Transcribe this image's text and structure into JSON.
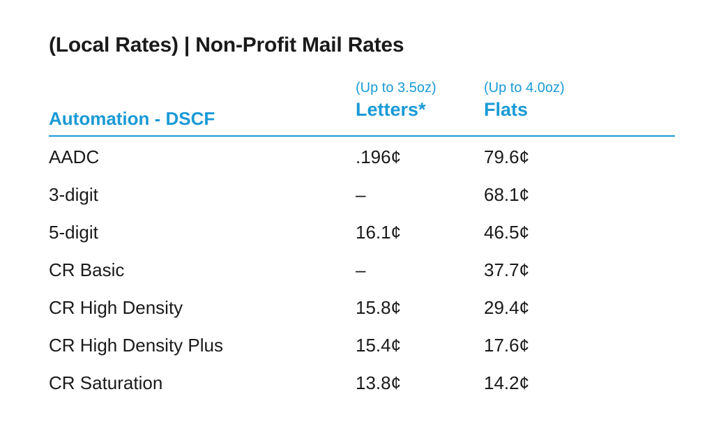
{
  "title": "(Local Rates) | Non-Profit Mail Rates",
  "table": {
    "section_label": "Automation - DSCF",
    "columns": [
      {
        "note": "(Up to 3.5oz)",
        "name": "Letters*"
      },
      {
        "note": "(Up to 4.0oz)",
        "name": "Flats"
      }
    ],
    "rows": [
      {
        "name": "AADC",
        "letters": ".196¢",
        "flats": "79.6¢"
      },
      {
        "name": "3-digit",
        "letters": "–",
        "flats": "68.1¢"
      },
      {
        "name": "5-digit",
        "letters": "16.1¢",
        "flats": "46.5¢"
      },
      {
        "name": "CR Basic",
        "letters": "–",
        "flats": "37.7¢"
      },
      {
        "name": "CR High Density",
        "letters": "15.8¢",
        "flats": "29.4¢"
      },
      {
        "name": "CR High Density Plus",
        "letters": "15.4¢",
        "flats": "17.6¢"
      },
      {
        "name": "CR Saturation",
        "letters": "13.8¢",
        "flats": "14.2¢"
      }
    ]
  },
  "colors": {
    "accent": "#1a9ad6",
    "text": "#1a1a1a",
    "background": "#ffffff"
  }
}
